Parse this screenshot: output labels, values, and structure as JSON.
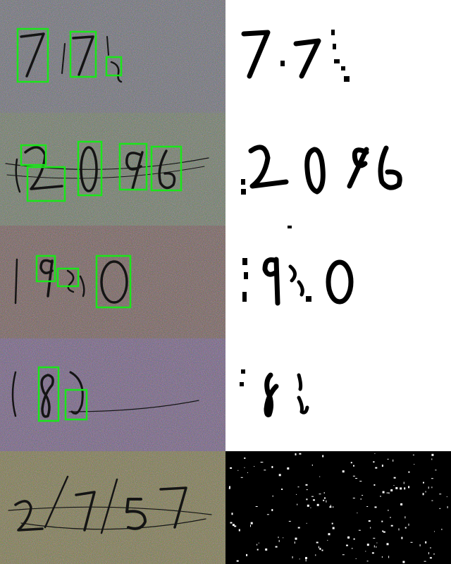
{
  "panels": [
    {
      "row": 1,
      "bg": "#6f6e79",
      "binary_bg": "#ffffff",
      "boxes": 3
    },
    {
      "row": 2,
      "bg": "#6f7769",
      "binary_bg": "#ffffff",
      "boxes": 5
    },
    {
      "row": 3,
      "bg": "#745d5d",
      "binary_bg": "#ffffff",
      "boxes": 3
    },
    {
      "row": 4,
      "bg": "#735e84",
      "binary_bg": "#ffffff",
      "boxes": 2
    },
    {
      "row": 5,
      "bg": "#7c7550",
      "binary_bg": "#000000",
      "boxes": 0
    }
  ],
  "colors": {
    "box": "#19e619",
    "ink": "#141414",
    "binary_ink": "#000000",
    "binary_bg_dark": "#000000",
    "speckle": "#ffffff"
  },
  "icons": {
    "noise": "noise-texture",
    "box": "detection-box"
  }
}
